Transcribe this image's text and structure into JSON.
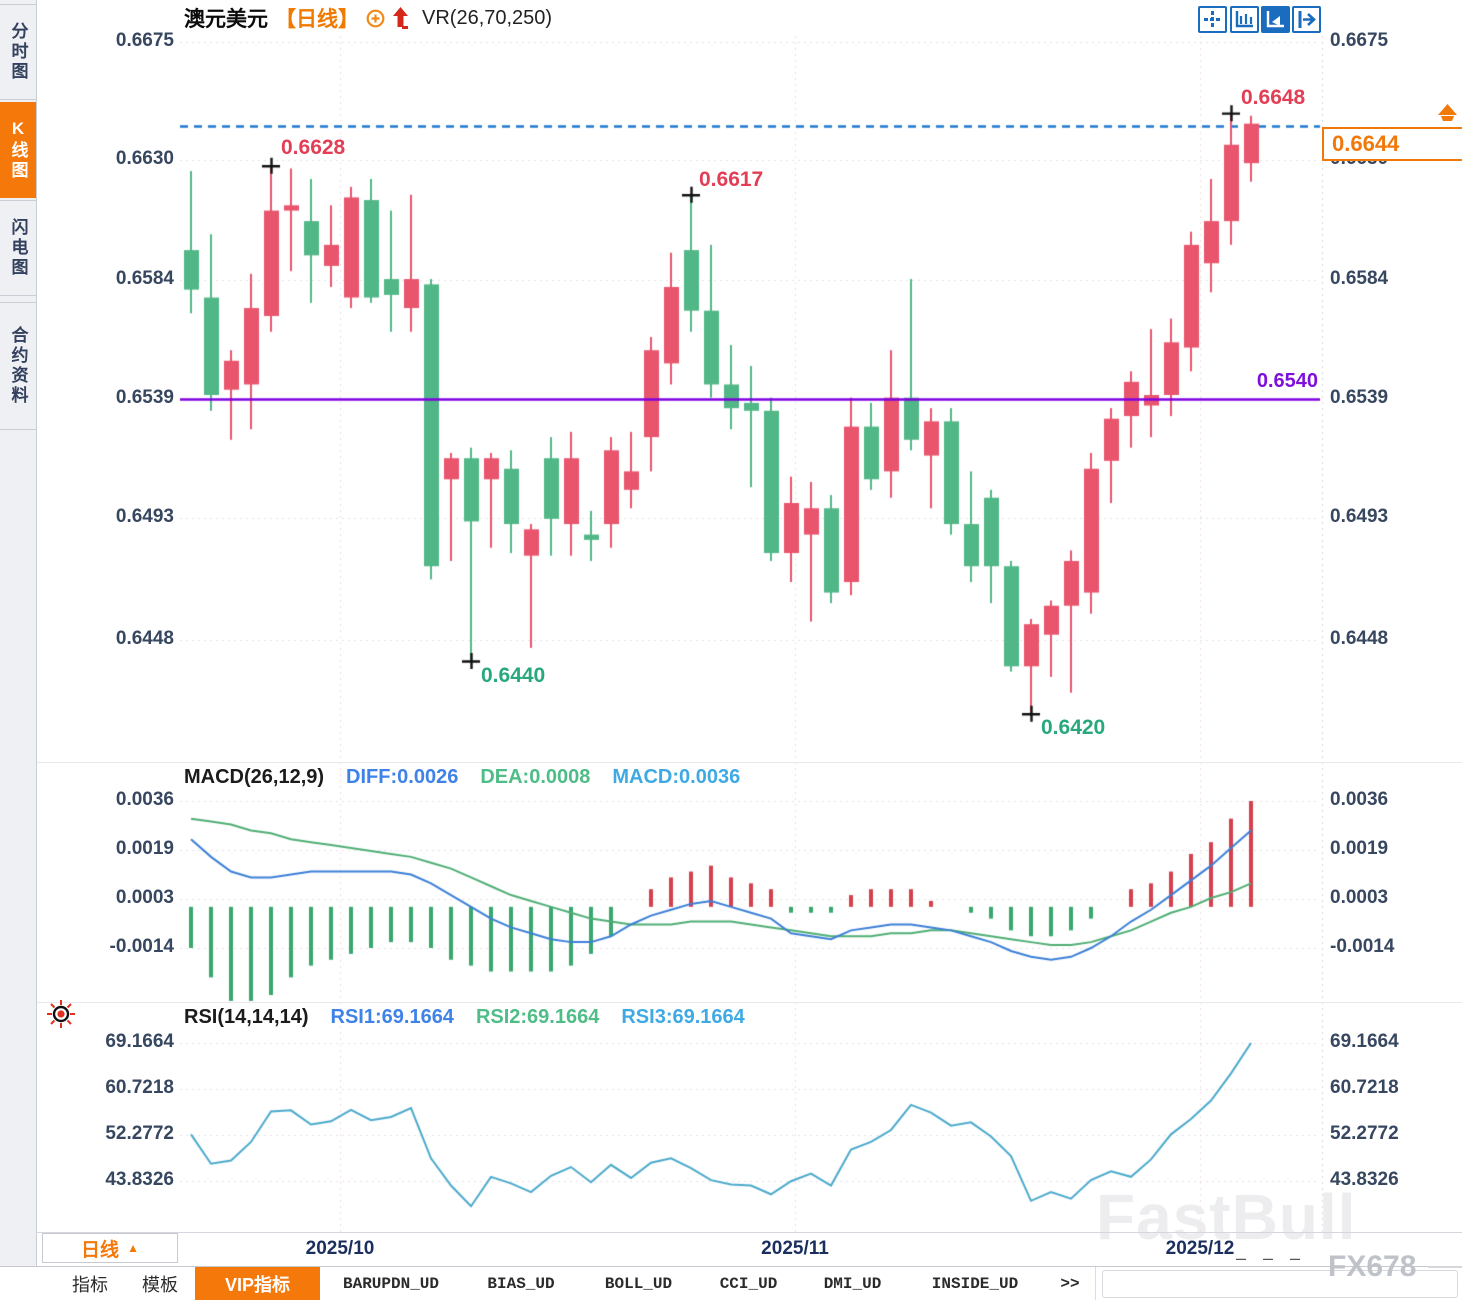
{
  "header": {
    "symbol": "澳元美元",
    "period_tag": "【日线】",
    "vr": "VR(26,70,250)"
  },
  "sidebar": {
    "tabs": [
      {
        "label": "分时图",
        "active": false
      },
      {
        "label": "K线图",
        "active": true
      },
      {
        "label": "闪电图",
        "active": false
      },
      {
        "label": "合约资料",
        "active": false
      }
    ]
  },
  "toolbar_icons": [
    "pan-crosshair",
    "x-axis-scale",
    "y-axis-scale",
    "collapse-right"
  ],
  "price_axis": {
    "labels": [
      "0.6675",
      "0.6630",
      "0.6584",
      "0.6539",
      "0.6493",
      "0.6448"
    ]
  },
  "annotations": {
    "a6628": "0.6628",
    "a6617": "0.6617",
    "a6648": "0.6648",
    "a6440": "0.6440",
    "a6420": "0.6420",
    "hline": "0.6540",
    "last": "0.6644"
  },
  "macd": {
    "header": {
      "name": "MACD(26,12,9)",
      "diff": "DIFF:0.0026",
      "dea": "DEA:0.0008",
      "macd": "MACD:0.0036"
    },
    "axis": [
      "0.0036",
      "0.0019",
      "0.0003",
      "-0.0014"
    ]
  },
  "rsi": {
    "header": {
      "name": "RSI(14,14,14)",
      "r1": "RSI1:69.1664",
      "r2": "RSI2:69.1664",
      "r3": "RSI3:69.1664"
    },
    "axis": [
      "69.1664",
      "60.7218",
      "52.2772",
      "43.8326"
    ]
  },
  "xaxis": {
    "labels": [
      "2025/10",
      "2025/11",
      "2025/12"
    ]
  },
  "period": {
    "label": "日线",
    "caret": "▲"
  },
  "bottom_tabs": [
    {
      "label": "指标",
      "active": false,
      "mono": false
    },
    {
      "label": "模板",
      "active": false,
      "mono": false
    },
    {
      "label": "VIP指标",
      "active": true,
      "mono": false
    },
    {
      "label": "BARUPDN_UD",
      "active": false,
      "mono": true
    },
    {
      "label": "BIAS_UD",
      "active": false,
      "mono": true
    },
    {
      "label": "BOLL_UD",
      "active": false,
      "mono": true
    },
    {
      "label": "CCI_UD",
      "active": false,
      "mono": true
    },
    {
      "label": "DMI_UD",
      "active": false,
      "mono": true
    },
    {
      "label": "INSIDE_UD",
      "active": false,
      "mono": true
    },
    {
      "label": ">>",
      "active": false,
      "mono": true
    }
  ],
  "watermarks": {
    "brand": "FastBull",
    "source": "FX678",
    "dashes": "– – –"
  },
  "colors": {
    "up_candle": "#e9556d",
    "down_candle": "#52b787",
    "purple_line": "#7f00e0",
    "dashed_line": "#1f78d1",
    "accent_orange": "#f5780a",
    "annotation_red": "#e23e55",
    "annotation_teal": "#28a87e",
    "macd_diff": "#3b7fd6",
    "macd_dea": "#4fae74",
    "hist_pos": "#d4404e",
    "hist_neg": "#3aa76d",
    "rsi_line": "#4aa9cb"
  },
  "chart_data": {
    "type": "candlestick",
    "title": "澳元美元 日线 (AUD/USD daily)",
    "price_ticks": [
      0.6675,
      0.663,
      0.6584,
      0.6539,
      0.6493,
      0.6448
    ],
    "macd_ticks": [
      0.0036,
      0.0019,
      0.0003,
      -0.0014
    ],
    "rsi_ticks": [
      69.1664,
      60.7218,
      52.2772,
      43.8326
    ],
    "x_tick_labels": [
      "2025/10",
      "2025/11",
      "2025/12"
    ],
    "hline_value": 0.654,
    "last_price": 0.6644,
    "candles": [
      [
        0.6596,
        0.6626,
        0.6572,
        0.6581
      ],
      [
        0.6578,
        0.6602,
        0.6535,
        0.6541
      ],
      [
        0.6543,
        0.6558,
        0.6524,
        0.6554
      ],
      [
        0.6545,
        0.6587,
        0.6528,
        0.6574
      ],
      [
        0.6571,
        0.6628,
        0.6565,
        0.6611
      ],
      [
        0.6611,
        0.6627,
        0.6588,
        0.6613
      ],
      [
        0.6607,
        0.6623,
        0.6576,
        0.6594
      ],
      [
        0.659,
        0.6613,
        0.6582,
        0.6598
      ],
      [
        0.6578,
        0.662,
        0.6574,
        0.6616
      ],
      [
        0.6615,
        0.6623,
        0.6576,
        0.6578
      ],
      [
        0.6585,
        0.6611,
        0.6565,
        0.6579
      ],
      [
        0.6574,
        0.6617,
        0.6565,
        0.6585
      ],
      [
        0.6583,
        0.6585,
        0.6471,
        0.6476
      ],
      [
        0.6509,
        0.6519,
        0.6478,
        0.6517
      ],
      [
        0.6517,
        0.6521,
        0.644,
        0.6493
      ],
      [
        0.6509,
        0.6519,
        0.6483,
        0.6517
      ],
      [
        0.6513,
        0.652,
        0.6481,
        0.6492
      ],
      [
        0.648,
        0.6492,
        0.6445,
        0.649
      ],
      [
        0.6517,
        0.6525,
        0.648,
        0.6494
      ],
      [
        0.6492,
        0.6527,
        0.648,
        0.6517
      ],
      [
        0.6488,
        0.6497,
        0.6478,
        0.6486
      ],
      [
        0.6492,
        0.6525,
        0.6483,
        0.652
      ],
      [
        0.6505,
        0.6527,
        0.6498,
        0.6512
      ],
      [
        0.6525,
        0.6563,
        0.6512,
        0.6558
      ],
      [
        0.6553,
        0.6595,
        0.6545,
        0.6582
      ],
      [
        0.6596,
        0.6617,
        0.6565,
        0.6573
      ],
      [
        0.6573,
        0.6598,
        0.654,
        0.6545
      ],
      [
        0.6545,
        0.656,
        0.6528,
        0.6536
      ],
      [
        0.6538,
        0.6552,
        0.6506,
        0.6535
      ],
      [
        0.6535,
        0.654,
        0.6478,
        0.6481
      ],
      [
        0.6481,
        0.651,
        0.647,
        0.65
      ],
      [
        0.6488,
        0.6508,
        0.6455,
        0.6498
      ],
      [
        0.6498,
        0.6503,
        0.6462,
        0.6466
      ],
      [
        0.647,
        0.654,
        0.6465,
        0.6529
      ],
      [
        0.6529,
        0.6538,
        0.6505,
        0.6509
      ],
      [
        0.6512,
        0.6558,
        0.6502,
        0.654
      ],
      [
        0.654,
        0.6585,
        0.652,
        0.6524
      ],
      [
        0.6518,
        0.6536,
        0.6498,
        0.6531
      ],
      [
        0.6531,
        0.6536,
        0.6488,
        0.6492
      ],
      [
        0.6492,
        0.6512,
        0.647,
        0.6476
      ],
      [
        0.6502,
        0.6505,
        0.6462,
        0.6476
      ],
      [
        0.6476,
        0.6478,
        0.6436,
        0.6438
      ],
      [
        0.6438,
        0.6456,
        0.642,
        0.6454
      ],
      [
        0.645,
        0.6463,
        0.6434,
        0.6461
      ],
      [
        0.6461,
        0.6482,
        0.6428,
        0.6478
      ],
      [
        0.6466,
        0.6519,
        0.6458,
        0.6513
      ],
      [
        0.6516,
        0.6536,
        0.65,
        0.6532
      ],
      [
        0.6533,
        0.655,
        0.6521,
        0.6546
      ],
      [
        0.6537,
        0.6566,
        0.6525,
        0.6541
      ],
      [
        0.6541,
        0.657,
        0.6533,
        0.6561
      ],
      [
        0.6559,
        0.6603,
        0.655,
        0.6598
      ],
      [
        0.6591,
        0.6623,
        0.658,
        0.6607
      ],
      [
        0.6607,
        0.6648,
        0.6598,
        0.6636
      ],
      [
        0.6629,
        0.6647,
        0.6622,
        0.6644
      ]
    ],
    "markers": [
      {
        "index": 4,
        "price": 0.6628,
        "at": "high"
      },
      {
        "index": 14,
        "price": 0.644,
        "at": "low"
      },
      {
        "index": 25,
        "price": 0.6617,
        "at": "high"
      },
      {
        "index": 42,
        "price": 0.642,
        "at": "low"
      },
      {
        "index": 52,
        "price": 0.6648,
        "at": "high"
      }
    ],
    "macd": {
      "diff": [
        0.0023,
        0.0017,
        0.0012,
        0.001,
        0.001,
        0.0011,
        0.0012,
        0.0012,
        0.0012,
        0.0012,
        0.0012,
        0.0011,
        0.0008,
        0.0004,
        0.0,
        -0.0004,
        -0.0007,
        -0.0009,
        -0.0011,
        -0.0012,
        -0.0012,
        -0.001,
        -0.0006,
        -0.0003,
        -0.0001,
        0.0001,
        0.0002,
        0.0,
        -0.0002,
        -0.0004,
        -0.0009,
        -0.001,
        -0.0011,
        -0.0008,
        -0.0007,
        -0.0006,
        -0.0006,
        -0.0007,
        -0.0008,
        -0.001,
        -0.0012,
        -0.0015,
        -0.0017,
        -0.0018,
        -0.0017,
        -0.0014,
        -0.001,
        -0.0005,
        -0.0001,
        0.0004,
        0.0009,
        0.0014,
        0.002,
        0.0026
      ],
      "dea": [
        0.003,
        0.0029,
        0.0028,
        0.0026,
        0.0025,
        0.0023,
        0.0022,
        0.0021,
        0.002,
        0.0019,
        0.0018,
        0.0017,
        0.0015,
        0.0013,
        0.001,
        0.0007,
        0.0004,
        0.0002,
        0.0,
        -0.0002,
        -0.0004,
        -0.0005,
        -0.0006,
        -0.0006,
        -0.0006,
        -0.0005,
        -0.0005,
        -0.0005,
        -0.0006,
        -0.0007,
        -0.0008,
        -0.0009,
        -0.001,
        -0.001,
        -0.001,
        -0.0009,
        -0.0009,
        -0.0008,
        -0.0008,
        -0.0009,
        -0.001,
        -0.0011,
        -0.0012,
        -0.0013,
        -0.0013,
        -0.0012,
        -0.001,
        -0.0008,
        -0.0005,
        -0.0002,
        0.0,
        0.0003,
        0.0005,
        0.0008
      ]
    },
    "rsi_values": [
      52.4,
      47.0,
      47.6,
      51.0,
      56.6,
      56.8,
      54.2,
      54.8,
      56.9,
      55.0,
      55.6,
      57.2,
      48.0,
      43.0,
      39.2,
      44.6,
      43.4,
      41.8,
      44.8,
      46.4,
      43.6,
      46.8,
      44.4,
      47.2,
      48.0,
      46.2,
      44.0,
      43.2,
      43.0,
      41.4,
      43.8,
      45.2,
      43.0,
      49.6,
      51.0,
      53.2,
      57.8,
      56.4,
      54.0,
      54.6,
      52.0,
      48.4,
      40.2,
      41.8,
      40.6,
      44.0,
      45.6,
      44.6,
      47.8,
      52.4,
      55.2,
      58.6,
      63.6,
      69.1664
    ]
  }
}
